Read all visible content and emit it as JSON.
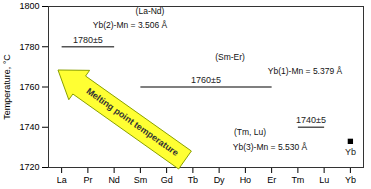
{
  "chart_data": {
    "type": "line",
    "y_label": "Temperature, °C",
    "categories": [
      "La",
      "Pr",
      "Nd",
      "Sm",
      "Gd",
      "Tb",
      "Dy",
      "Ho",
      "Er",
      "Tm",
      "Lu",
      "Yb"
    ],
    "ylim": [
      1720,
      1800
    ],
    "yticks": [
      1720,
      1740,
      1760,
      1780,
      1800
    ],
    "color": "#555555",
    "segments": [
      {
        "from": "La",
        "to": "Nd",
        "value": 1780,
        "label": "1780±5"
      },
      {
        "from": "Sm",
        "to": "Er",
        "value": 1760,
        "label": "1760±5"
      },
      {
        "from": "Tm",
        "to": "Lu",
        "value": 1740,
        "label": "1740±5"
      }
    ],
    "points": [
      {
        "category": "Yb",
        "value": 1733,
        "label": "Yb"
      }
    ],
    "annotations": [
      "(La-Nd)",
      "Yb(2)-Mn = 3.506 Å",
      "(Sm-Er)",
      "Yb(1)-Mn = 5.379 Å",
      "(Tm, Lu)",
      "Yb(3)-Mn = 5.530 Å"
    ],
    "arrow_text": "Melting point temperature"
  }
}
